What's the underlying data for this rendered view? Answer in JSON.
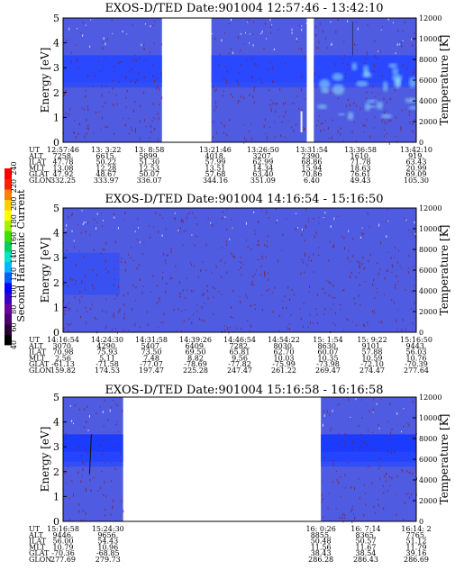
{
  "colors": {
    "background": "#ffffff",
    "spectrum_base": "#4f5be0",
    "spectrum_band": "#2a48ff",
    "spectrum_core": "#1b3bff",
    "spectrum_hot": "#8fe8ff",
    "noise": "#8a1b28",
    "noise_white": "#ffffff"
  },
  "colorbar": {
    "label": "Second Harmonic Current",
    "ticks": [
      "40",
      "60",
      "80",
      "100",
      "120",
      "140",
      "160",
      "180",
      "200",
      "220",
      "240"
    ],
    "colors": [
      "#000000",
      "#2b0038",
      "#4a006e",
      "#6a00a0",
      "#3a00c8",
      "#0000ff",
      "#0060ff",
      "#00b8ff",
      "#00e6c8",
      "#00d060",
      "#40e000",
      "#a8f000",
      "#ffff00",
      "#ffd000",
      "#ff8000",
      "#ff2000",
      "#ff0000"
    ]
  },
  "panels": [
    {
      "title": "EXOS-D/TED   Date:901004   12:57:46 - 13:42:10",
      "y_label": "Energy [eV]",
      "y2_label": "Temperature [K]",
      "y_ticks": [
        "0",
        "1",
        "2",
        "3",
        "4",
        "5"
      ],
      "y2_ticks": [
        "0",
        "2000",
        "4000",
        "6000",
        "8000",
        "10000",
        "12000"
      ],
      "data_segments": [
        [
          0.0,
          0.28
        ],
        [
          0.42,
          0.69
        ],
        [
          0.71,
          1.0
        ]
      ],
      "table": {
        "row_labels": [
          "UT",
          "ALT",
          "ILAT",
          "MLT",
          "GLAT",
          "GLON"
        ],
        "columns": [
          {
            "p": 0.0,
            "v": [
              "12:57:46",
              "7258.",
              "47.78",
              "13.08",
              "47.92",
              "332.25"
            ]
          },
          {
            "p": 0.122,
            "v": [
              "13: 3:22",
              "6615.",
              "50.22",
              "12.28",
              "48.67",
              "333.97"
            ]
          },
          {
            "p": 0.244,
            "v": [
              "13: 8:58",
              "5899.",
              "51.30",
              "12.53",
              "50.07",
              "336.07"
            ]
          },
          {
            "p": 0.431,
            "v": [
              "13:21:46",
              "4018.",
              "57.99",
              "13.51",
              "57.68",
              "344.16"
            ]
          },
          {
            "p": 0.566,
            "v": [
              "13:26:50",
              "3207.",
              "62.99",
              "14.34",
              "63.40",
              "351.09"
            ]
          },
          {
            "p": 0.704,
            "v": [
              "13:31:54",
              "2390.",
              "68.86",
              "15.94",
              "70.86",
              "6.40"
            ]
          },
          {
            "p": 0.842,
            "v": [
              "13:36:58",
              "1610.",
              "71.78",
              "18.63",
              "76.61",
              "49.43"
            ]
          },
          {
            "p": 1.0,
            "v": [
              "13:42:10",
              "919.",
              "63.43",
              "20.99",
              "69.09",
              "105.30"
            ]
          }
        ]
      }
    },
    {
      "title": "EXOS-D/TED   Date:901004   14:16:54 - 15:16:50",
      "y_label": "Energy [eV]",
      "y2_label": "Temperature [K]",
      "y_ticks": [
        "0",
        "1",
        "2",
        "3",
        "4",
        "5"
      ],
      "y2_ticks": [
        "0",
        "2000",
        "4000",
        "6000",
        "8000",
        "10000",
        "12000"
      ],
      "data_segments": [
        [
          0.0,
          1.0
        ]
      ],
      "table": {
        "row_labels": [
          "UT",
          "ALT",
          "ILAT",
          "MLT",
          "GLAT",
          "GLON"
        ],
        "columns": [
          {
            "p": 0.0,
            "v": [
              "14:16:54",
              "3070.",
              "70.98",
              "2.56",
              "-61.13",
              "159.82"
            ]
          },
          {
            "p": 0.125,
            "v": [
              "14:24:30",
              "4290.",
              "75.93",
              "5.11",
              "-71.58",
              "174.53"
            ]
          },
          {
            "p": 0.25,
            "v": [
              "14:31:58",
              "5407.",
              "73.50",
              "7.48",
              "-77.07",
              "197.47"
            ]
          },
          {
            "p": 0.375,
            "v": [
              "14:39:26",
              "6409.",
              "69.50",
              "8.82",
              "-78.69",
              "225.28"
            ]
          },
          {
            "p": 0.5,
            "v": [
              "14:46:54",
              "7282.",
              "65.81",
              "9.56",
              "-77.82",
              "247.47"
            ]
          },
          {
            "p": 0.625,
            "v": [
              "14:54:22",
              "8030.",
              "62.70",
              "10.03",
              "-75.99",
              "261.22"
            ]
          },
          {
            "p": 0.75,
            "v": [
              "15: 1:54",
              "8630.",
              "60.07",
              "10.35",
              "-73.98",
              "269.47"
            ]
          },
          {
            "p": 0.875,
            "v": [
              "15: 9:22",
              "9101.",
              "57.88",
              "10.59",
              "-72.10",
              "274.47"
            ]
          },
          {
            "p": 1.0,
            "v": [
              "15:16:50",
              "9443.",
              "56.03",
              "10.76",
              "-70.39",
              "277.64"
            ]
          }
        ]
      }
    },
    {
      "title": "EXOS-D/TED   Date:901004   15:16:58 - 16:16:58",
      "y_label": "Energy [eV]",
      "y2_label": "Temperature [K]",
      "y_ticks": [
        "0",
        "1",
        "2",
        "3",
        "4",
        "5"
      ],
      "y2_ticks": [
        "0",
        "2000",
        "4000",
        "6000",
        "8000",
        "10000",
        "12000"
      ],
      "data_segments": [
        [
          0.0,
          0.17
        ],
        [
          0.73,
          1.0
        ]
      ],
      "table": {
        "row_labels": [
          "UT",
          "ALT",
          "ILAT",
          "MLT",
          "GLAT",
          "GLON"
        ],
        "columns": [
          {
            "p": 0.0,
            "v": [
              "15:16:58",
              "9446.",
              "56.00",
              "10.79",
              "-70.36",
              "277.69"
            ]
          },
          {
            "p": 0.127,
            "v": [
              "15:24:30",
              "9656.",
              "54.43",
              "10.96",
              "-68.85",
              "279.73"
            ]
          },
          {
            "p": 0.73,
            "v": [
              "16: 0:26",
              "8855.",
              "50.48",
              "11.56",
              "38.43",
              "286.28"
            ]
          },
          {
            "p": 0.857,
            "v": [
              "16: 7:14",
              "8365.",
              "50.57",
              "11.67",
              "38.54",
              "286.43"
            ]
          },
          {
            "p": 1.0,
            "v": [
              "16:14: 2",
              "7765.",
              "51.12",
              "11.79",
              "39.16",
              "286.69"
            ]
          }
        ]
      }
    }
  ]
}
